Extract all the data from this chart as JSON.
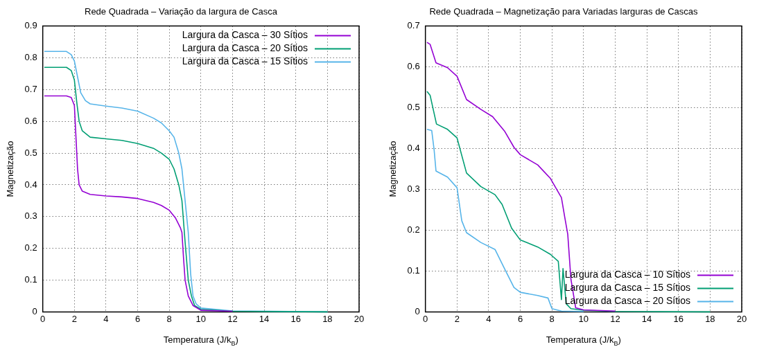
{
  "chart_data": [
    {
      "type": "line",
      "title": "Rede Quadrada – Variação da largura de Casca",
      "xlabel": "Temperatura (J/k$_{B}$)",
      "ylabel": "Magnetização",
      "xlim": [
        0,
        20
      ],
      "xticks": [
        0,
        2,
        4,
        6,
        8,
        10,
        12,
        14,
        16,
        18,
        20
      ],
      "ylim": [
        0,
        0.9
      ],
      "yticks": [
        0,
        0.1,
        0.2,
        0.3,
        0.4,
        0.5,
        0.6,
        0.7,
        0.8,
        0.9
      ],
      "grid": true,
      "legend": "top right",
      "marker": "none",
      "line_style": "solid",
      "series": [
        {
          "name": "Largura da Casca – 30 Sítios",
          "color": "#9400d3",
          "x": [
            0.1,
            1.5,
            1.8,
            2.0,
            2.1,
            2.2,
            2.3,
            2.5,
            3,
            4,
            5,
            6,
            7,
            7.5,
            8,
            8.4,
            8.7,
            8.8,
            8.9,
            9.0,
            9.2,
            9.5,
            10,
            12
          ],
          "values": [
            0.68,
            0.68,
            0.675,
            0.65,
            0.55,
            0.45,
            0.4,
            0.38,
            0.37,
            0.365,
            0.362,
            0.357,
            0.345,
            0.335,
            0.32,
            0.295,
            0.265,
            0.25,
            0.17,
            0.1,
            0.05,
            0.02,
            0.005,
            0.002
          ]
        },
        {
          "name": "Largura da Casca – 20 Sítios",
          "color": "#009e73",
          "x": [
            0.1,
            1.5,
            1.8,
            2.0,
            2.15,
            2.3,
            2.5,
            3,
            4,
            5,
            6,
            7,
            7.5,
            8,
            8.3,
            8.6,
            8.8,
            9.0,
            9.2,
            9.4,
            9.6,
            10,
            12,
            18
          ],
          "values": [
            0.77,
            0.77,
            0.76,
            0.73,
            0.66,
            0.6,
            0.57,
            0.55,
            0.545,
            0.54,
            0.53,
            0.515,
            0.5,
            0.48,
            0.45,
            0.4,
            0.35,
            0.22,
            0.1,
            0.05,
            0.02,
            0.008,
            0.002,
            0
          ]
        },
        {
          "name": "Largura da Casca – 15 Sítios",
          "color": "#56b4e9",
          "x": [
            0.1,
            1.5,
            1.8,
            2.0,
            2.2,
            2.4,
            2.7,
            3,
            4,
            5,
            6,
            7,
            7.5,
            8,
            8.3,
            8.6,
            8.8,
            9.0,
            9.2,
            9.35,
            9.5,
            9.7,
            10,
            12,
            18
          ],
          "values": [
            0.82,
            0.82,
            0.81,
            0.79,
            0.74,
            0.69,
            0.665,
            0.655,
            0.648,
            0.642,
            0.632,
            0.61,
            0.595,
            0.57,
            0.55,
            0.5,
            0.45,
            0.35,
            0.25,
            0.12,
            0.05,
            0.025,
            0.012,
            0.003,
            0
          ]
        }
      ]
    },
    {
      "type": "line",
      "title": "Rede Quadrada – Magnetização para Variadas larguras de Cascas",
      "xlabel": "Temperatura (J/k$_{B}$)",
      "ylabel": "Magnetização",
      "xlim": [
        0,
        20
      ],
      "xticks": [
        0,
        2,
        4,
        6,
        8,
        10,
        12,
        14,
        16,
        18,
        20
      ],
      "ylim": [
        0,
        0.7
      ],
      "yticks": [
        0,
        0.1,
        0.2,
        0.3,
        0.4,
        0.5,
        0.6,
        0.7
      ],
      "grid": true,
      "legend": "bottom right",
      "marker": "none",
      "line_style": "solid",
      "series": [
        {
          "name": "Largura da Casca – 10 Sítios",
          "color": "#9400d3",
          "x": [
            0.1,
            0.3,
            0.67,
            1.4,
            2,
            2.6,
            3.5,
            4.25,
            5,
            5.6,
            6,
            7.1,
            7.9,
            8.6,
            8.8,
            9,
            9.2,
            9.5,
            10,
            12
          ],
          "values": [
            0.66,
            0.655,
            0.61,
            0.598,
            0.577,
            0.52,
            0.496,
            0.478,
            0.443,
            0.403,
            0.385,
            0.36,
            0.327,
            0.28,
            0.234,
            0.19,
            0.08,
            0.01,
            0.005,
            0.002
          ]
        },
        {
          "name": "Largura da Casca – 15 Sítios",
          "color": "#009e73",
          "x": [
            0.1,
            0.3,
            0.7,
            1.4,
            2,
            2.6,
            3.5,
            4.4,
            4.85,
            5.45,
            6,
            7.1,
            7.9,
            8.4,
            8.6,
            8.7,
            8.9,
            9.2,
            10,
            12,
            18
          ],
          "values": [
            0.54,
            0.53,
            0.46,
            0.447,
            0.426,
            0.34,
            0.307,
            0.287,
            0.263,
            0.205,
            0.176,
            0.159,
            0.141,
            0.124,
            0.03,
            0.106,
            0.02,
            0.008,
            0.004,
            0.001,
            0
          ]
        },
        {
          "name": "Largura da Casca – 20 Sítios",
          "color": "#56b4e9",
          "x": [
            0.1,
            0.4,
            0.55,
            0.67,
            1.4,
            2,
            2.3,
            2.6,
            3.5,
            4.4,
            5,
            5.6,
            6,
            7.1,
            7.75,
            8,
            8.6,
            10
          ],
          "values": [
            0.447,
            0.444,
            0.397,
            0.345,
            0.33,
            0.304,
            0.223,
            0.194,
            0.17,
            0.153,
            0.106,
            0.06,
            0.048,
            0.04,
            0.034,
            0.008,
            0.002,
            0.001
          ]
        }
      ]
    }
  ]
}
